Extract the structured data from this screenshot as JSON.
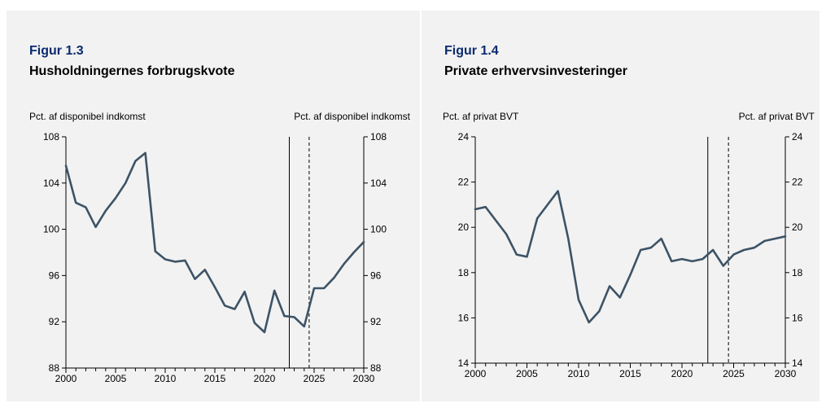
{
  "chart_data": [
    {
      "type": "line",
      "figure_label": "Figur 1.3",
      "title": "Husholdningernes forbrugskvote",
      "ylabel_left": "Pct. af disponibel indkomst",
      "ylabel_right": "Pct. af disponibel indkomst",
      "xlim": [
        2000,
        2030
      ],
      "ylim": [
        88,
        108
      ],
      "x_ticks": [
        2000,
        2005,
        2010,
        2015,
        2020,
        2025,
        2030
      ],
      "y_ticks": [
        88,
        92,
        96,
        100,
        104,
        108
      ],
      "vlines": [
        {
          "x": 2022.5,
          "style": "solid"
        },
        {
          "x": 2024.5,
          "style": "dashed"
        }
      ],
      "line_color": "#3d5366",
      "series": [
        {
          "x": [
            2000,
            2001,
            2002,
            2003,
            2004,
            2005,
            2006,
            2007,
            2008,
            2009,
            2010,
            2011,
            2012,
            2013,
            2014,
            2015,
            2016,
            2017,
            2018,
            2019,
            2020,
            2021,
            2022,
            2023,
            2024,
            2025,
            2026,
            2027,
            2028,
            2029,
            2030
          ],
          "values": [
            105.5,
            102.3,
            101.9,
            100.2,
            101.6,
            102.7,
            104.0,
            105.9,
            106.6,
            98.1,
            97.4,
            97.2,
            97.3,
            95.7,
            96.5,
            95.0,
            93.4,
            93.1,
            94.6,
            91.9,
            91.1,
            94.7,
            92.5,
            92.4,
            91.6,
            94.9,
            94.9,
            95.8,
            97.0,
            98.0,
            98.9
          ]
        }
      ]
    },
    {
      "type": "line",
      "figure_label": "Figur 1.4",
      "title": "Private erhvervsinvesteringer",
      "ylabel_left": "Pct. af privat BVT",
      "ylabel_right": "Pct. af privat BVT",
      "xlim": [
        2000,
        2030
      ],
      "ylim": [
        14,
        24
      ],
      "x_ticks": [
        2000,
        2005,
        2010,
        2015,
        2020,
        2025,
        2030
      ],
      "y_ticks": [
        14,
        16,
        18,
        20,
        22,
        24
      ],
      "vlines": [
        {
          "x": 2022.5,
          "style": "solid"
        },
        {
          "x": 2024.5,
          "style": "dashed"
        }
      ],
      "line_color": "#3d5366",
      "series": [
        {
          "x": [
            2000,
            2001,
            2002,
            2003,
            2004,
            2005,
            2006,
            2007,
            2008,
            2009,
            2010,
            2011,
            2012,
            2013,
            2014,
            2015,
            2016,
            2017,
            2018,
            2019,
            2020,
            2021,
            2022,
            2023,
            2024,
            2025,
            2026,
            2027,
            2028,
            2029,
            2030
          ],
          "values": [
            20.8,
            20.9,
            20.3,
            19.7,
            18.8,
            18.7,
            20.4,
            21.0,
            21.6,
            19.5,
            16.8,
            15.8,
            16.3,
            17.4,
            16.9,
            17.9,
            19.0,
            19.1,
            19.5,
            18.5,
            18.6,
            18.5,
            18.6,
            19.0,
            18.3,
            18.8,
            19.0,
            19.1,
            19.4,
            19.5,
            19.6
          ]
        }
      ]
    }
  ]
}
